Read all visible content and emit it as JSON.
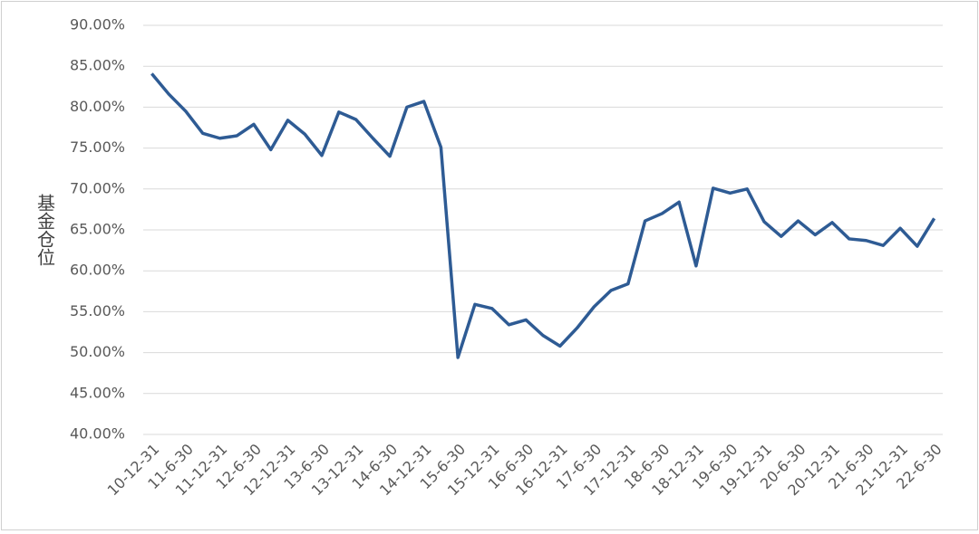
{
  "chart_data": {
    "type": "line",
    "y_label": "基金仓位",
    "categories": [
      "10-12-31",
      null,
      "11-6-30",
      null,
      "11-12-31",
      null,
      "12-6-30",
      null,
      "12-12-31",
      null,
      "13-6-30",
      null,
      "13-12-31",
      null,
      "14-6-30",
      null,
      "14-12-31",
      null,
      "15-6-30",
      null,
      "15-12-31",
      null,
      "16-6-30",
      null,
      "16-12-31",
      null,
      "17-6-30",
      null,
      "17-12-31",
      null,
      "18-6-30",
      null,
      "18-12-31",
      null,
      "19-6-30",
      null,
      "19-12-31",
      null,
      "20-6-30",
      null,
      "20-12-31",
      null,
      "21-6-30",
      null,
      "21-12-31",
      null,
      "22-6-30"
    ],
    "series": [
      {
        "color": "#2e5b94",
        "values": [
          84.1,
          81.6,
          79.5,
          76.8,
          76.2,
          76.5,
          77.9,
          74.8,
          78.4,
          76.7,
          74.1,
          79.4,
          78.5,
          76.2,
          74.0,
          80.0,
          80.7,
          75.1,
          49.4,
          55.9,
          55.4,
          53.4,
          54.0,
          52.1,
          50.8,
          53.0,
          55.6,
          57.6,
          58.4,
          66.1,
          67.0,
          68.4,
          60.6,
          70.1,
          69.5,
          70.0,
          66.0,
          64.2,
          66.1,
          64.4,
          65.9,
          63.9,
          63.7,
          63.1,
          65.2,
          63.0,
          66.4
        ]
      }
    ],
    "ylim": [
      40,
      90
    ],
    "yticks": [
      {
        "value": 40,
        "label": "40.00%"
      },
      {
        "value": 45,
        "label": "45.00%"
      },
      {
        "value": 50,
        "label": "50.00%"
      },
      {
        "value": 55,
        "label": "55.00%"
      },
      {
        "value": 60,
        "label": "60.00%"
      },
      {
        "value": 65,
        "label": "65.00%"
      },
      {
        "value": 70,
        "label": "70.00%"
      },
      {
        "value": 75,
        "label": "75.00%"
      },
      {
        "value": 80,
        "label": "80.00%"
      },
      {
        "value": 85,
        "label": "85.00%"
      },
      {
        "value": 90,
        "label": "90.00%"
      }
    ],
    "grid": true
  }
}
